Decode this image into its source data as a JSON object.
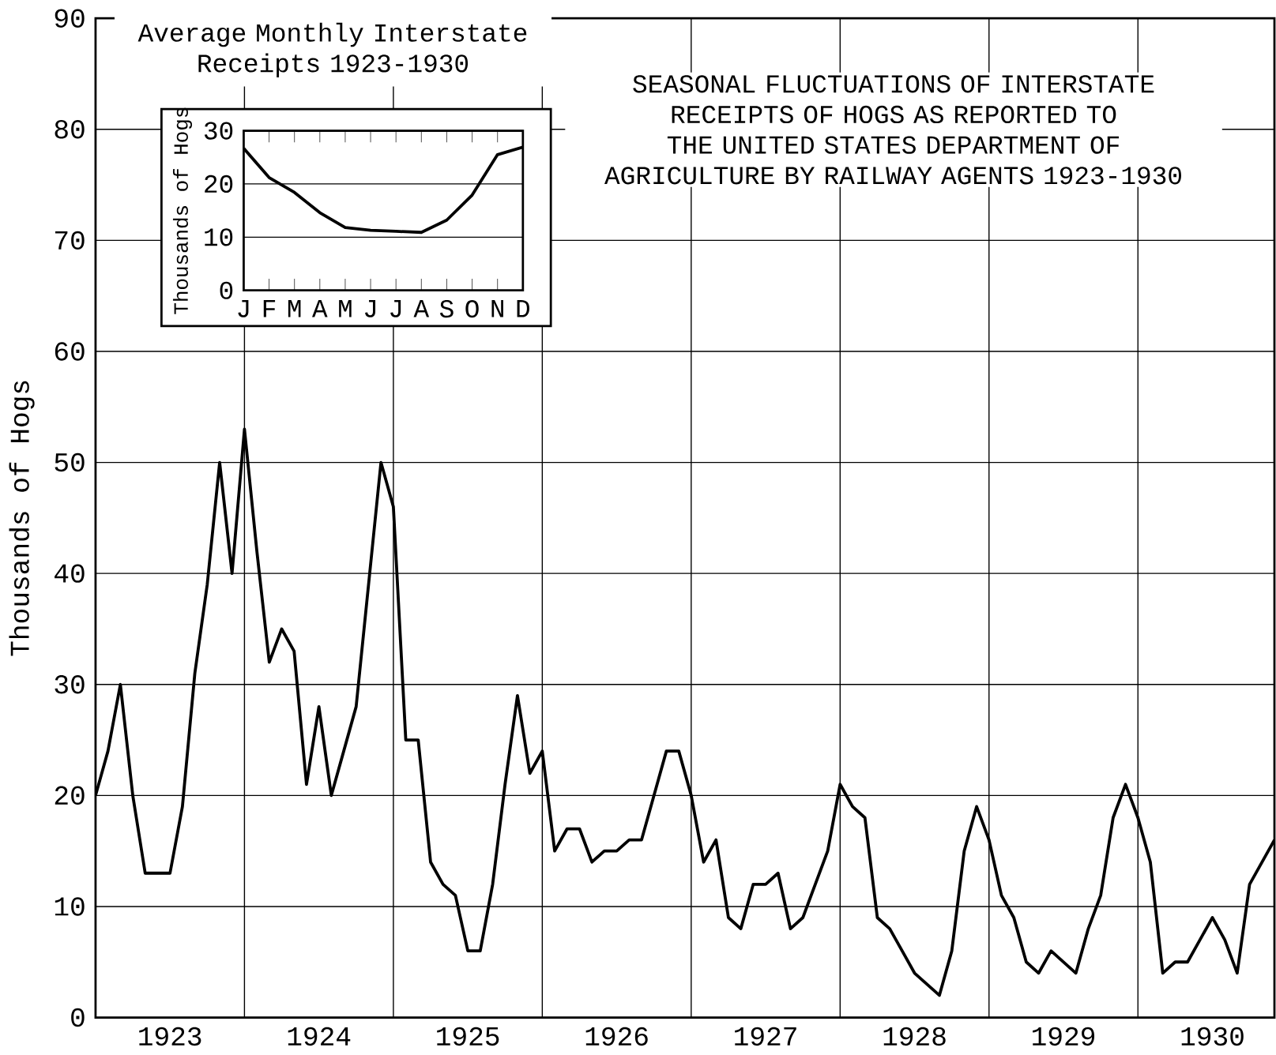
{
  "chart_data": [
    {
      "type": "line",
      "title": "SEASONAL FLUCTUATIONS OF INTERSTATE RECEIPTS OF HOGS AS REPORTED TO THE UNITED STATES DEPARTMENT OF AGRICULTURE BY RAILWAY AGENTS 1923-1930",
      "ylabel": "Thousands of Hogs",
      "x": [
        "1923-01",
        "1923-02",
        "1923-03",
        "1923-04",
        "1923-05",
        "1923-06",
        "1923-07",
        "1923-08",
        "1923-09",
        "1923-10",
        "1923-11",
        "1923-12",
        "1924-01",
        "1924-02",
        "1924-03",
        "1924-04",
        "1924-05",
        "1924-06",
        "1924-07",
        "1924-08",
        "1924-09",
        "1924-10",
        "1924-11",
        "1924-12",
        "1925-01",
        "1925-02",
        "1925-03",
        "1925-04",
        "1925-05",
        "1925-06",
        "1925-07",
        "1925-08",
        "1925-09",
        "1925-10",
        "1925-11",
        "1925-12",
        "1926-01",
        "1926-02",
        "1926-03",
        "1926-04",
        "1926-05",
        "1926-06",
        "1926-07",
        "1926-08",
        "1926-09",
        "1926-10",
        "1926-11",
        "1926-12",
        "1927-01",
        "1927-02",
        "1927-03",
        "1927-04",
        "1927-05",
        "1927-06",
        "1927-07",
        "1927-08",
        "1927-09",
        "1927-10",
        "1927-11",
        "1927-12",
        "1928-01",
        "1928-02",
        "1928-03",
        "1928-04",
        "1928-05",
        "1928-06",
        "1928-07",
        "1928-08",
        "1928-09",
        "1928-10",
        "1928-11",
        "1928-12",
        "1929-01",
        "1929-02",
        "1929-03",
        "1929-04",
        "1929-05",
        "1929-06",
        "1929-07",
        "1929-08",
        "1929-09",
        "1929-10",
        "1929-11",
        "1929-12",
        "1930-01",
        "1930-02",
        "1930-03",
        "1930-04",
        "1930-05",
        "1930-06",
        "1930-07",
        "1930-08",
        "1930-09",
        "1930-10",
        "1930-11",
        "1930-12"
      ],
      "series": [
        {
          "color": "#000000",
          "values": [
            20,
            24,
            30,
            20,
            13,
            13,
            13,
            19,
            31,
            39,
            50,
            40,
            53,
            42,
            32,
            35,
            33,
            21,
            28,
            20,
            24,
            28,
            39,
            50,
            46,
            25,
            25,
            14,
            12,
            11,
            6,
            6,
            12,
            21,
            29,
            22,
            24,
            15,
            17,
            17,
            14,
            15,
            15,
            16,
            16,
            20,
            24,
            24,
            20,
            14,
            16,
            9,
            8,
            12,
            12,
            13,
            8,
            9,
            12,
            15,
            21,
            19,
            18,
            9,
            8,
            6,
            4,
            3,
            2,
            6,
            15,
            19,
            16,
            11,
            9,
            5,
            4,
            6,
            5,
            4,
            8,
            11,
            18,
            21,
            18,
            14,
            4,
            5,
            5,
            7,
            9,
            7,
            4,
            12,
            14,
            16
          ]
        }
      ],
      "xlim": [
        "1923-01",
        "1930-12"
      ],
      "xticks": [
        {
          "value": "1923-07",
          "label": "1923"
        },
        {
          "value": "1924-01",
          "label": null
        },
        {
          "value": "1924-07",
          "label": "1924"
        },
        {
          "value": "1925-01",
          "label": null
        },
        {
          "value": "1925-07",
          "label": "1925"
        },
        {
          "value": "1926-01",
          "label": null
        },
        {
          "value": "1926-07",
          "label": "1926"
        },
        {
          "value": "1927-01",
          "label": null
        },
        {
          "value": "1927-07",
          "label": "1927"
        },
        {
          "value": "1928-01",
          "label": null
        },
        {
          "value": "1928-07",
          "label": "1928"
        },
        {
          "value": "1929-01",
          "label": null
        },
        {
          "value": "1929-07",
          "label": "1929"
        },
        {
          "value": "1930-01",
          "label": null
        },
        {
          "value": "1930-07",
          "label": "1930"
        }
      ],
      "ylim": [
        0,
        90
      ],
      "yticks": [
        0,
        10,
        20,
        30,
        40,
        50,
        60,
        70,
        80,
        90
      ],
      "grid": true
    },
    {
      "type": "line",
      "title": "Average Monthly Interstate Receipts 1923-1930",
      "ylabel": "Thousands of Hogs",
      "categories": [
        "J",
        "F",
        "M",
        "A",
        "M",
        "J",
        "J",
        "A",
        "S",
        "O",
        "N",
        "D"
      ],
      "series": [
        {
          "color": "#000000",
          "values": [
            26.7,
            21.2,
            18.4,
            14.6,
            11.8,
            11.3,
            11.1,
            10.9,
            13.2,
            17.9,
            25.5,
            26.9
          ]
        }
      ],
      "ylim": [
        0,
        30
      ],
      "yticks": [
        0,
        10,
        20,
        30
      ],
      "grid": "y"
    }
  ]
}
